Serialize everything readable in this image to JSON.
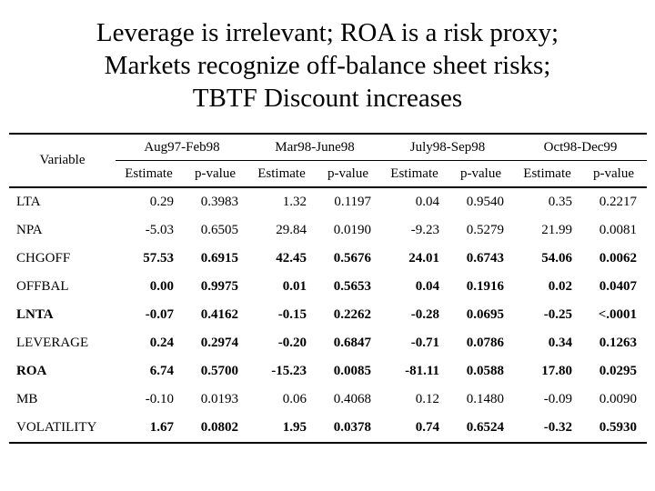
{
  "slide": {
    "title_lines": [
      "Leverage is irrelevant; ROA is a risk proxy;",
      "Markets recognize off-balance sheet risks;",
      "TBTF Discount increases"
    ]
  },
  "table": {
    "variable_header": "Variable",
    "period_headers": [
      "Aug97-Feb98",
      "Mar98-June98",
      "July98-Sep98",
      "Oct98-Dec99"
    ],
    "sub_headers": [
      "Estimate",
      "p-value"
    ],
    "rows": [
      {
        "variable": "LTA",
        "bold_label": false,
        "bold_values": false,
        "values": [
          "0.29",
          "0.3983",
          "1.32",
          "0.1197",
          "0.04",
          "0.9540",
          "0.35",
          "0.2217"
        ]
      },
      {
        "variable": "NPA",
        "bold_label": false,
        "bold_values": false,
        "values": [
          "-5.03",
          "0.6505",
          "29.84",
          "0.0190",
          "-9.23",
          "0.5279",
          "21.99",
          "0.0081"
        ]
      },
      {
        "variable": "CHGOFF",
        "bold_label": false,
        "bold_values": true,
        "values": [
          "57.53",
          "0.6915",
          "42.45",
          "0.5676",
          "24.01",
          "0.6743",
          "54.06",
          "0.0062"
        ]
      },
      {
        "variable": "OFFBAL",
        "bold_label": false,
        "bold_values": true,
        "values": [
          "0.00",
          "0.9975",
          "0.01",
          "0.5653",
          "0.04",
          "0.1916",
          "0.02",
          "0.0407"
        ]
      },
      {
        "variable": "LNTA",
        "bold_label": true,
        "bold_values": true,
        "values": [
          "-0.07",
          "0.4162",
          "-0.15",
          "0.2262",
          "-0.28",
          "0.0695",
          "-0.25",
          "<.0001"
        ]
      },
      {
        "variable": "LEVERAGE",
        "bold_label": false,
        "bold_values": true,
        "values": [
          "0.24",
          "0.2974",
          "-0.20",
          "0.6847",
          "-0.71",
          "0.0786",
          "0.34",
          "0.1263"
        ]
      },
      {
        "variable": "ROA",
        "bold_label": true,
        "bold_values": true,
        "values": [
          "6.74",
          "0.5700",
          "-15.23",
          "0.0085",
          "-81.11",
          "0.0588",
          "17.80",
          "0.0295"
        ]
      },
      {
        "variable": "MB",
        "bold_label": false,
        "bold_values": false,
        "values": [
          "-0.10",
          "0.0193",
          "0.06",
          "0.4068",
          "0.12",
          "0.1480",
          "-0.09",
          "0.0090"
        ]
      },
      {
        "variable": "VOLATILITY",
        "bold_label": false,
        "bold_values": true,
        "values": [
          "1.67",
          "0.0802",
          "1.95",
          "0.0378",
          "0.74",
          "0.6524",
          "-0.32",
          "0.5930"
        ]
      }
    ]
  },
  "colors": {
    "background": "#ffffff",
    "text": "#000000",
    "rule": "#000000"
  }
}
